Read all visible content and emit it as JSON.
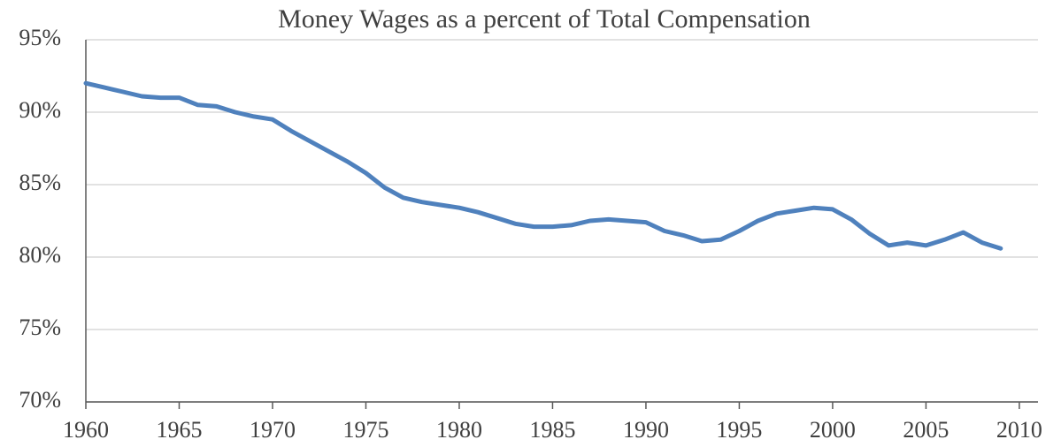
{
  "chart_data": {
    "type": "line",
    "title": "Money Wages as a percent of Total Compensation",
    "x": [
      1960,
      1961,
      1962,
      1963,
      1964,
      1965,
      1966,
      1967,
      1968,
      1969,
      1970,
      1971,
      1972,
      1973,
      1974,
      1975,
      1976,
      1977,
      1978,
      1979,
      1980,
      1981,
      1982,
      1983,
      1984,
      1985,
      1986,
      1987,
      1988,
      1989,
      1990,
      1991,
      1992,
      1993,
      1994,
      1995,
      1996,
      1997,
      1998,
      1999,
      2000,
      2001,
      2002,
      2003,
      2004,
      2005,
      2006,
      2007,
      2008,
      2009
    ],
    "series": [
      {
        "name": "Money Wages",
        "color": "#4f81bd",
        "values": [
          92.0,
          91.7,
          91.4,
          91.1,
          91.0,
          91.0,
          90.5,
          90.4,
          90.0,
          89.7,
          89.5,
          88.7,
          88.0,
          87.3,
          86.6,
          85.8,
          84.8,
          84.1,
          83.8,
          83.6,
          83.4,
          83.1,
          82.7,
          82.3,
          82.1,
          82.1,
          82.2,
          82.5,
          82.6,
          82.5,
          82.4,
          81.8,
          81.5,
          81.1,
          81.2,
          81.8,
          82.5,
          83.0,
          83.2,
          83.4,
          83.3,
          82.6,
          81.6,
          80.8,
          81.0,
          80.8,
          81.2,
          81.7,
          81.0,
          80.6
        ]
      }
    ],
    "xlim": [
      1960,
      2011
    ],
    "xticks": [
      1960,
      1965,
      1970,
      1975,
      1980,
      1985,
      1990,
      1995,
      2000,
      2005,
      2010
    ],
    "ylim": [
      70,
      95
    ],
    "yticks": [
      {
        "value": 70,
        "label": "70%"
      },
      {
        "value": 75,
        "label": "75%"
      },
      {
        "value": 80,
        "label": "80%"
      },
      {
        "value": 85,
        "label": "85%"
      },
      {
        "value": 90,
        "label": "90%"
      },
      {
        "value": 95,
        "label": "95%"
      }
    ],
    "grid": true
  }
}
